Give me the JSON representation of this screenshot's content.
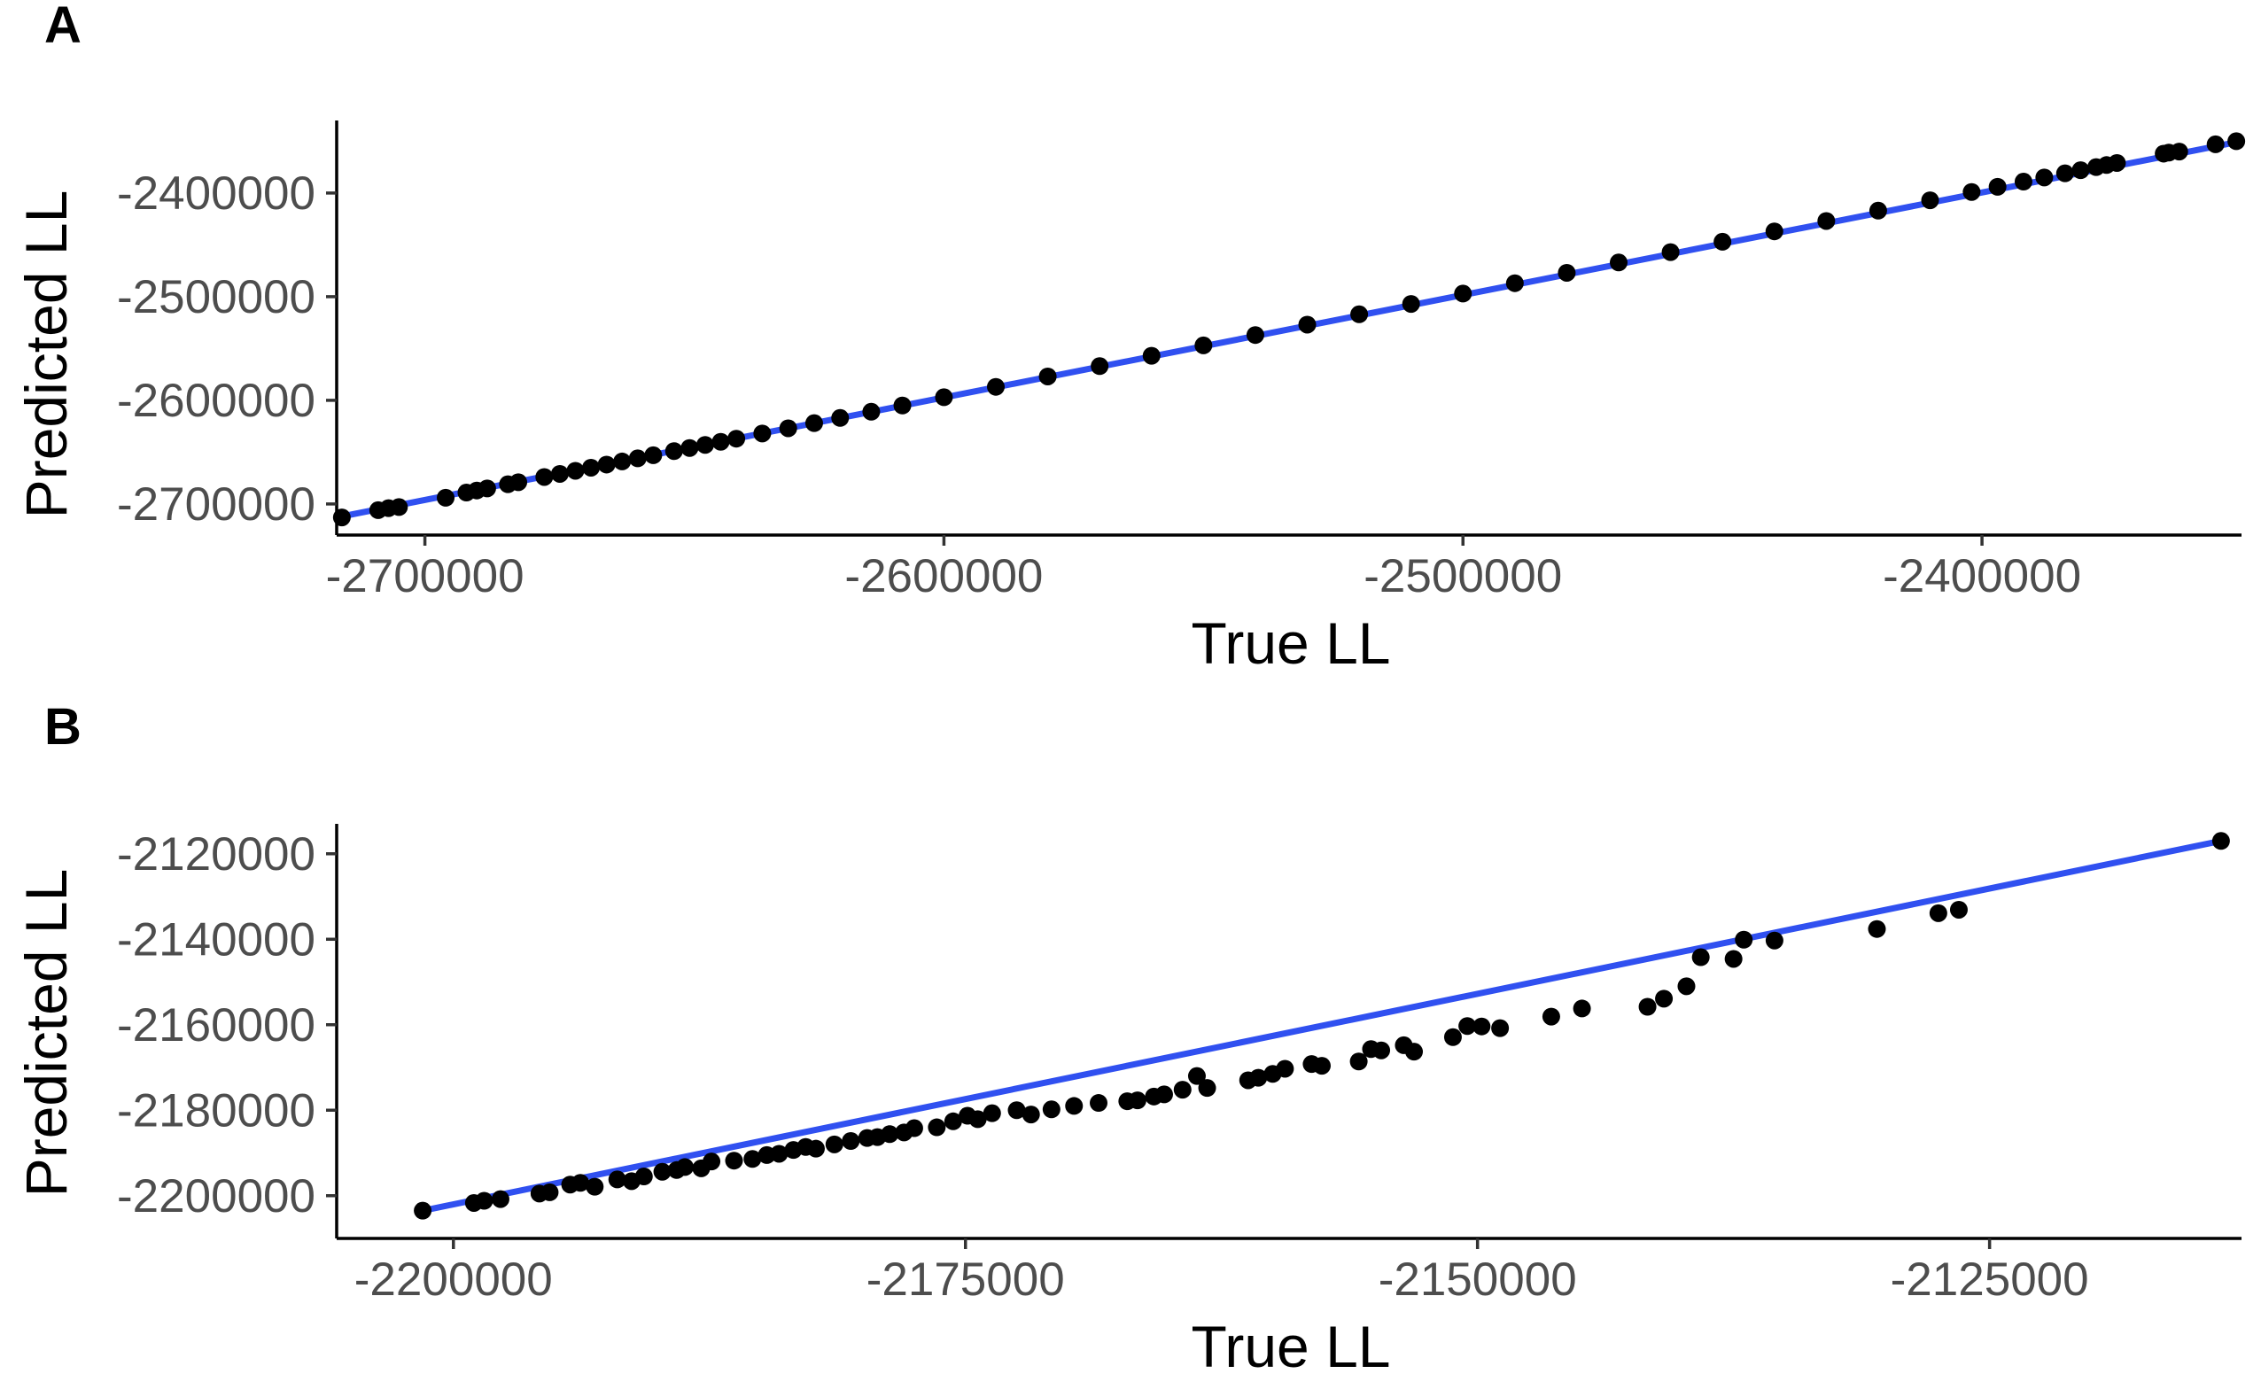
{
  "chart_data": [
    {
      "type": "scatter",
      "panel_label": "A",
      "title": "",
      "xlabel": "True LL",
      "ylabel": "Predicted LL",
      "xlim": [
        -2717000,
        -2350000
      ],
      "ylim": [
        -2730000,
        -2330000
      ],
      "x_ticks": [
        -2700000,
        -2600000,
        -2500000,
        -2400000
      ],
      "x_tick_labels": [
        "-2700000",
        "-2600000",
        "-2500000",
        "-2400000"
      ],
      "y_ticks": [
        -2700000,
        -2600000,
        -2500000,
        -2400000
      ],
      "y_tick_labels": [
        "-2700000",
        "-2600000",
        "-2500000",
        "-2400000"
      ],
      "grid": false,
      "legend": "none",
      "fit_line": {
        "x": [
          -2716000,
          -2351000
        ],
        "y": [
          -2712000,
          -2351000
        ]
      },
      "x": [
        -2716000,
        -2709000,
        -2707000,
        -2705000,
        -2696000,
        -2692000,
        -2690000,
        -2688000,
        -2684000,
        -2682000,
        -2677000,
        -2674000,
        -2671000,
        -2668000,
        -2665000,
        -2662000,
        -2659000,
        -2656000,
        -2652000,
        -2649000,
        -2646000,
        -2643000,
        -2640000,
        -2635000,
        -2630000,
        -2625000,
        -2620000,
        -2614000,
        -2608000,
        -2600000,
        -2590000,
        -2580000,
        -2570000,
        -2560000,
        -2550000,
        -2540000,
        -2530000,
        -2520000,
        -2510000,
        -2500000,
        -2490000,
        -2480000,
        -2470000,
        -2460000,
        -2450000,
        -2440000,
        -2430000,
        -2420000,
        -2410000,
        -2402000,
        -2397000,
        -2392000,
        -2388000,
        -2384000,
        -2381000,
        -2378000,
        -2376000,
        -2374000,
        -2365000,
        -2364000,
        -2362000,
        -2355000,
        -2351000
      ],
      "y": [
        -2713000,
        -2706000,
        -2704000,
        -2703000,
        -2694000,
        -2689000,
        -2687000,
        -2685000,
        -2681000,
        -2679000,
        -2674000,
        -2671000,
        -2668000,
        -2665000,
        -2662000,
        -2659000,
        -2656000,
        -2653000,
        -2649000,
        -2646000,
        -2643000,
        -2640000,
        -2637000,
        -2632000,
        -2627000,
        -2622000,
        -2617000,
        -2611000,
        -2605000,
        -2597000,
        -2587000,
        -2577000,
        -2567000,
        -2557000,
        -2547000,
        -2537000,
        -2527000,
        -2517000,
        -2507000,
        -2497000,
        -2487000,
        -2477000,
        -2467000,
        -2457000,
        -2447000,
        -2437000,
        -2427000,
        -2417000,
        -2407000,
        -2399000,
        -2394000,
        -2389000,
        -2385000,
        -2381000,
        -2378000,
        -2375000,
        -2373000,
        -2371000,
        -2362000,
        -2361000,
        -2360000,
        -2353000,
        -2350000
      ]
    },
    {
      "type": "scatter",
      "panel_label": "B",
      "title": "",
      "xlabel": "True LL",
      "ylabel": "Predicted LL",
      "xlim": [
        -2205700,
        -2112700
      ],
      "ylim": [
        -2210000,
        -2113000
      ],
      "x_ticks": [
        -2200000,
        -2175000,
        -2150000,
        -2125000
      ],
      "x_tick_labels": [
        "-2200000",
        "-2175000",
        "-2150000",
        "-2125000"
      ],
      "y_ticks": [
        -2200000,
        -2180000,
        -2160000,
        -2140000,
        -2120000
      ],
      "y_tick_labels": [
        "-2200000",
        "-2180000",
        "-2160000",
        "-2140000",
        "-2120000"
      ],
      "grid": false,
      "legend": "none",
      "fit_line": {
        "x": [
          -2201500,
          -2113700
        ],
        "y": [
          -2203500,
          -2117000
        ]
      },
      "x": [
        -2201500,
        -2199000,
        -2198500,
        -2197700,
        -2195800,
        -2195300,
        -2194300,
        -2193800,
        -2193100,
        -2192000,
        -2191300,
        -2190700,
        -2189800,
        -2189100,
        -2188700,
        -2187900,
        -2187400,
        -2186300,
        -2185400,
        -2184700,
        -2184100,
        -2183400,
        -2182800,
        -2182300,
        -2181400,
        -2180600,
        -2179800,
        -2179300,
        -2178700,
        -2178000,
        -2177500,
        -2176400,
        -2175600,
        -2174900,
        -2174400,
        -2173700,
        -2172500,
        -2171800,
        -2170800,
        -2169700,
        -2168500,
        -2167100,
        -2166600,
        -2165800,
        -2165300,
        -2164400,
        -2163700,
        -2163200,
        -2161200,
        -2160700,
        -2160000,
        -2159400,
        -2158100,
        -2157600,
        -2155800,
        -2155200,
        -2154700,
        -2153600,
        -2153100,
        -2151200,
        -2150500,
        -2149800,
        -2148900,
        -2146400,
        -2144900,
        -2141700,
        -2140900,
        -2139800,
        -2139100,
        -2137500,
        -2137000,
        -2135500,
        -2130500,
        -2127500,
        -2126500,
        -2113700
      ],
      "y": [
        -2203500,
        -2201700,
        -2201200,
        -2200800,
        -2199500,
        -2199200,
        -2197400,
        -2197000,
        -2197900,
        -2196200,
        -2196600,
        -2195500,
        -2194400,
        -2194000,
        -2193300,
        -2193600,
        -2192000,
        -2191800,
        -2191400,
        -2190500,
        -2190200,
        -2189300,
        -2188600,
        -2189000,
        -2188000,
        -2187200,
        -2186500,
        -2186300,
        -2185600,
        -2185200,
        -2184200,
        -2184000,
        -2182600,
        -2181300,
        -2182100,
        -2180700,
        -2180000,
        -2181000,
        -2179800,
        -2179000,
        -2178300,
        -2177900,
        -2177700,
        -2176800,
        -2176300,
        -2175200,
        -2172000,
        -2174800,
        -2173000,
        -2172400,
        -2171500,
        -2170300,
        -2169200,
        -2169600,
        -2168600,
        -2165700,
        -2166000,
        -2164800,
        -2166300,
        -2162900,
        -2160300,
        -2160400,
        -2160800,
        -2158100,
        -2156200,
        -2155800,
        -2153900,
        -2151000,
        -2144200,
        -2144600,
        -2140100,
        -2140300,
        -2137600,
        -2133900,
        -2133100,
        -2117000
      ]
    }
  ]
}
